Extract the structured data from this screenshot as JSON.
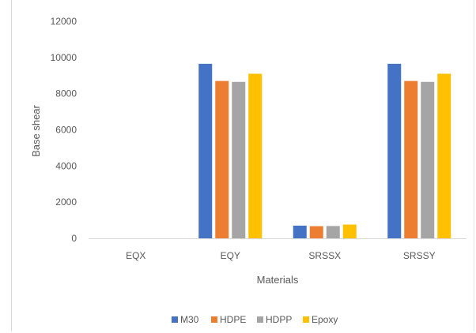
{
  "chart_data": {
    "type": "bar",
    "title": "",
    "xlabel": "Materials",
    "ylabel": "Base shear",
    "categories": [
      "EQX",
      "EQY",
      "SRSSX",
      "SRSSY"
    ],
    "ylim": [
      0,
      12000
    ],
    "yticks": [
      0,
      2000,
      4000,
      6000,
      8000,
      10000,
      12000
    ],
    "grid": false,
    "legend_position": "bottom",
    "series": [
      {
        "name": "M30",
        "color": "#4472c4",
        "values": [
          0,
          9650,
          700,
          9650
        ]
      },
      {
        "name": "HDPE",
        "color": "#ed7d31",
        "values": [
          0,
          8700,
          670,
          8700
        ]
      },
      {
        "name": "HDPP",
        "color": "#a5a5a5",
        "values": [
          0,
          8650,
          680,
          8650
        ]
      },
      {
        "name": "Epoxy",
        "color": "#ffc000",
        "values": [
          0,
          9100,
          760,
          9100
        ]
      }
    ]
  }
}
